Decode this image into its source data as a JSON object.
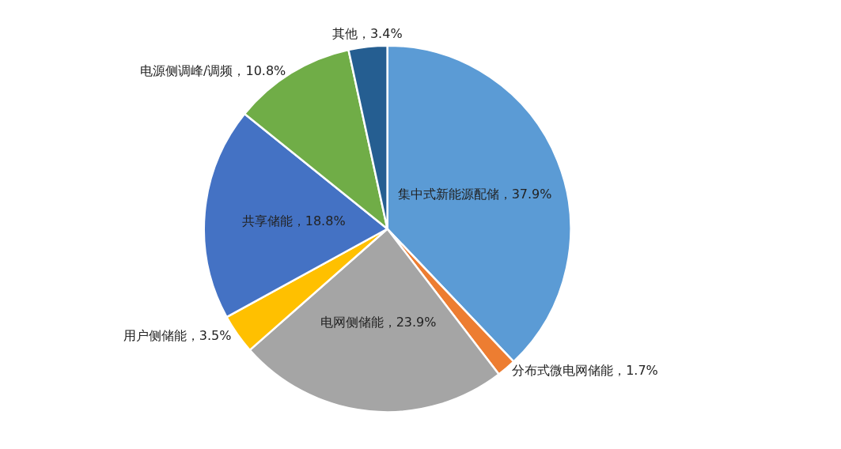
{
  "chart_data": {
    "type": "pie",
    "categories": [
      "集中式新能源配储",
      "分布式微电网储能",
      "电网侧储能",
      "用户侧储能",
      "共享储能",
      "电源侧调峰/调频",
      "其他"
    ],
    "values": [
      37.9,
      1.7,
      23.9,
      3.5,
      18.8,
      10.8,
      3.4
    ],
    "colors": [
      "#5b9bd5",
      "#ed7d31",
      "#a5a5a5",
      "#ffc000",
      "#4472c4",
      "#70ad47",
      "#255e91"
    ],
    "value_labels": [
      "，37.9%",
      "，1.7%",
      "，23.9%",
      "，3.5%",
      "，18.8%",
      "，10.8%",
      "，3.4%"
    ],
    "legend": false
  }
}
